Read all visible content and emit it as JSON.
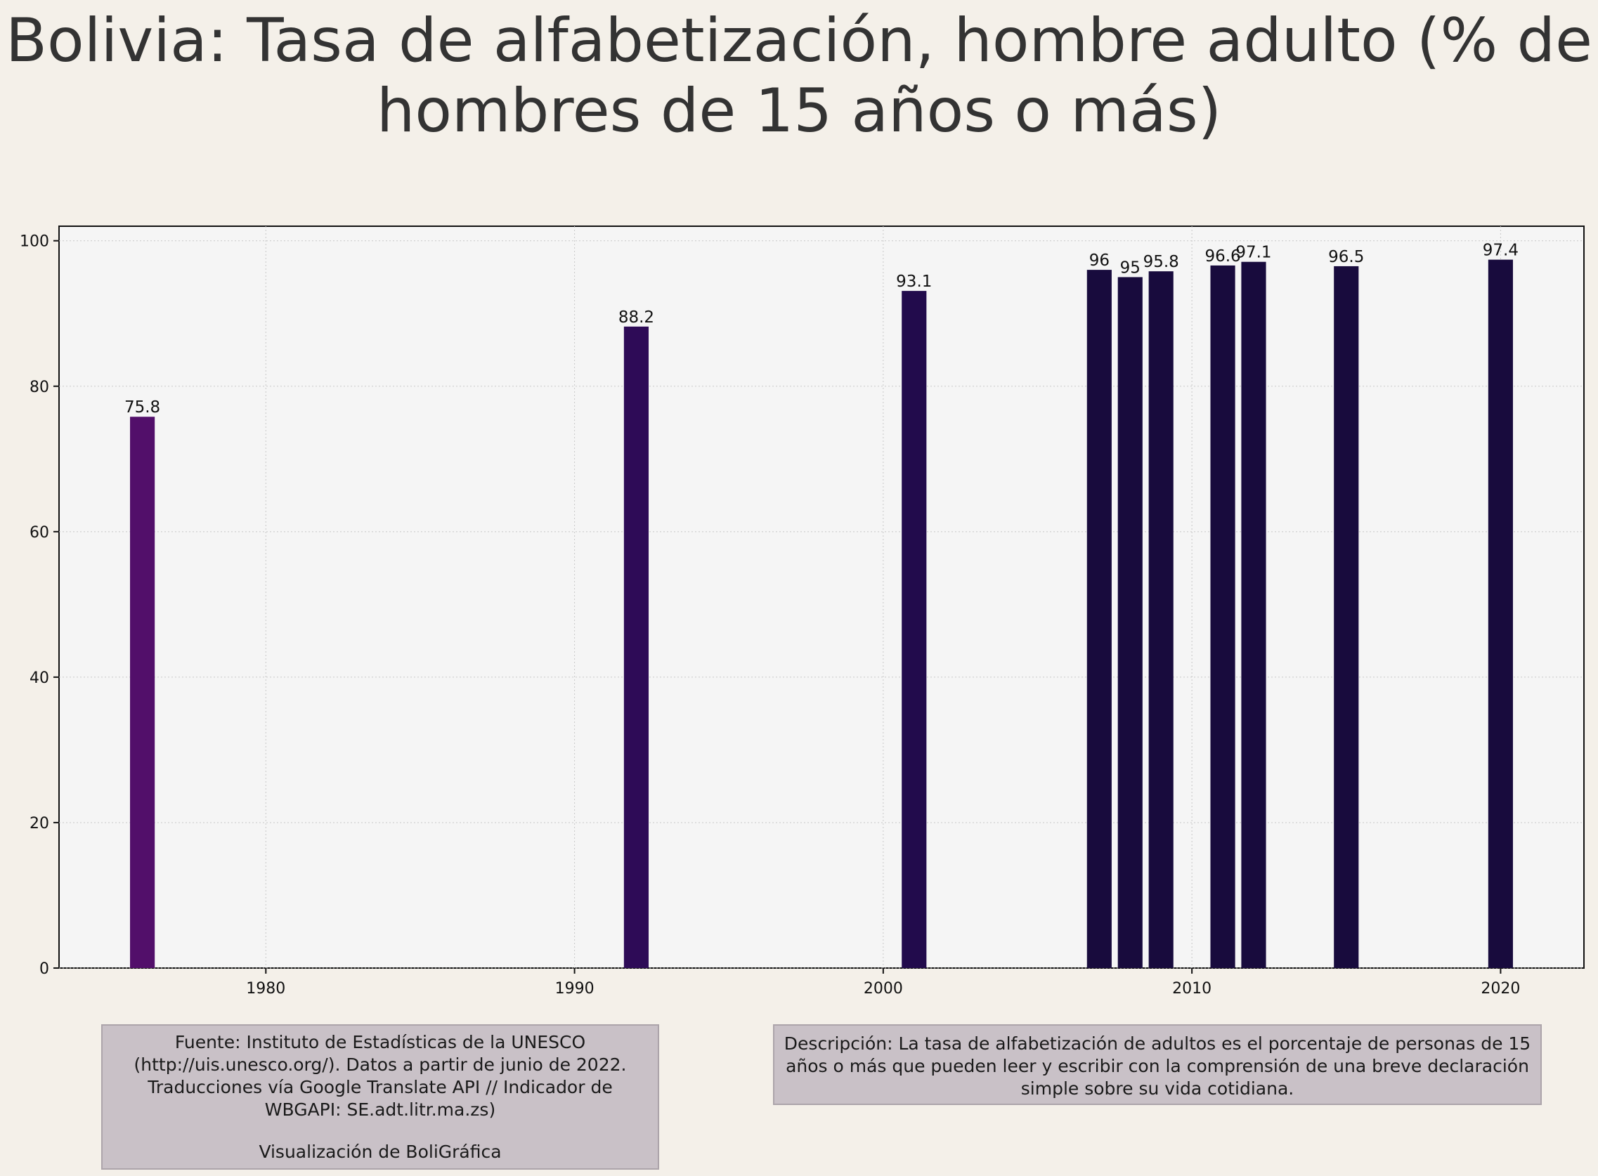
{
  "title": "Bolivia:  Tasa de alfabetización, hombre adulto (% de hombres de 15 años o más)",
  "source": {
    "text": "Fuente: Instituto de Estadísticas de la UNESCO (http://uis.unesco.org/). Datos a partir de junio de 2022. Traducciones vía Google Translate API // Indicador de WBGAPI: SE.adt.litr.ma.zs)",
    "credit": "Visualización de BoliGráfica"
  },
  "description": "Descripción: La tasa de alfabetización de adultos es el porcentaje de personas de 15 años o más que pueden leer y escribir con la comprensión de una breve declaración simple sobre su vida cotidiana.",
  "colors": {
    "background": "#f4f0e9",
    "plot_background": "#f5f5f5",
    "bar_1976": "#520f6a",
    "bar_1992": "#2e0b57",
    "bar_2001": "#220b4c",
    "bar_late": "#180b3d"
  },
  "chart_data": {
    "type": "bar",
    "title": "Bolivia:  Tasa de alfabetización, hombre adulto (% de hombres de 15 años o más)",
    "x": [
      1976,
      1992,
      2001,
      2007,
      2008,
      2009,
      2011,
      2012,
      2015,
      2020
    ],
    "values": [
      75.8,
      88.2,
      93.1,
      96,
      95,
      95.8,
      96.6,
      97.1,
      96.5,
      97.4
    ],
    "labels": [
      "75.8",
      "88.2",
      "93.1",
      "96",
      "95",
      "95.8",
      "96.6",
      "97.1",
      "96.5",
      "97.4"
    ],
    "xlim": [
      1973.3,
      2022.7
    ],
    "ylim": [
      0,
      102
    ],
    "xticks": [
      1980,
      1990,
      2000,
      2010,
      2020
    ],
    "yticks": [
      0,
      20,
      40,
      60,
      80,
      100
    ],
    "grid": true,
    "legend": "none",
    "xlabel": "",
    "ylabel": ""
  }
}
